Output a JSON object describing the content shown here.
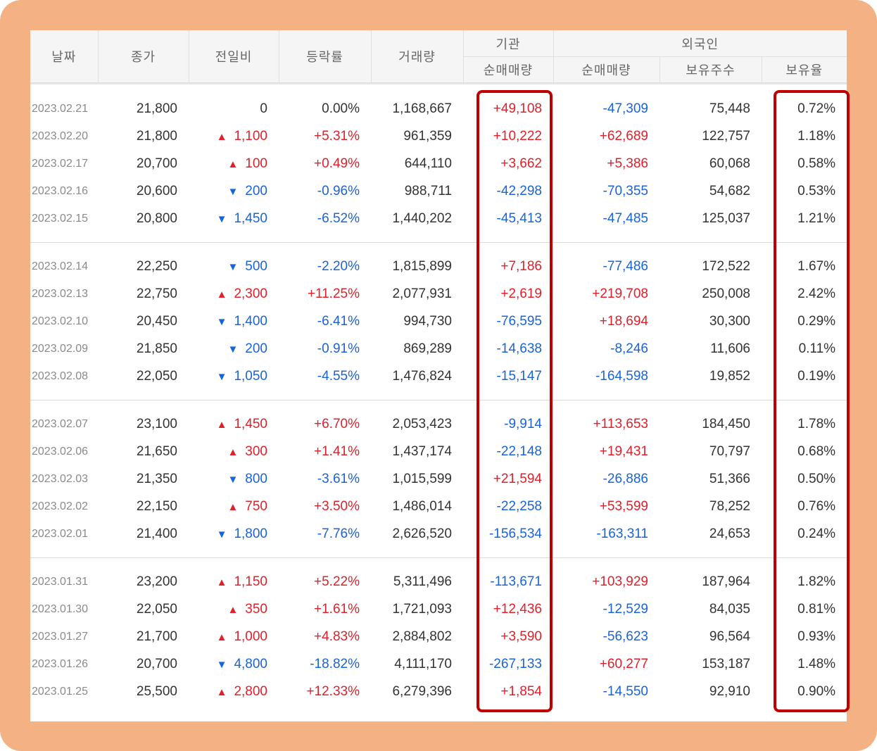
{
  "header": {
    "date": "날짜",
    "close": "종가",
    "diff": "전일비",
    "rate": "등락률",
    "volume": "거래량",
    "institution": "기관",
    "foreign": "외국인",
    "inst_net": "순매매량",
    "foreign_net": "순매매량",
    "foreign_holdings": "보유주수",
    "foreign_ratio": "보유율"
  },
  "colors": {
    "up": "#e0202a",
    "down": "#1a63d8",
    "highlight_border": "#c00000",
    "frame_background": "#f3b184"
  },
  "groups": [
    [
      {
        "date": "2023.02.21",
        "close": "21,800",
        "diff_dir": "none",
        "diff": "0",
        "rate": "0.00%",
        "volume": "1,168,667",
        "inst_net": "+49,108",
        "foreign_net": "-47,309",
        "holdings": "75,448",
        "ratio": "0.72%"
      },
      {
        "date": "2023.02.20",
        "close": "21,800",
        "diff_dir": "up",
        "diff": "1,100",
        "rate": "+5.31%",
        "volume": "961,359",
        "inst_net": "+10,222",
        "foreign_net": "+62,689",
        "holdings": "122,757",
        "ratio": "1.18%"
      },
      {
        "date": "2023.02.17",
        "close": "20,700",
        "diff_dir": "up",
        "diff": "100",
        "rate": "+0.49%",
        "volume": "644,110",
        "inst_net": "+3,662",
        "foreign_net": "+5,386",
        "holdings": "60,068",
        "ratio": "0.58%"
      },
      {
        "date": "2023.02.16",
        "close": "20,600",
        "diff_dir": "down",
        "diff": "200",
        "rate": "-0.96%",
        "volume": "988,711",
        "inst_net": "-42,298",
        "foreign_net": "-70,355",
        "holdings": "54,682",
        "ratio": "0.53%"
      },
      {
        "date": "2023.02.15",
        "close": "20,800",
        "diff_dir": "down",
        "diff": "1,450",
        "rate": "-6.52%",
        "volume": "1,440,202",
        "inst_net": "-45,413",
        "foreign_net": "-47,485",
        "holdings": "125,037",
        "ratio": "1.21%"
      }
    ],
    [
      {
        "date": "2023.02.14",
        "close": "22,250",
        "diff_dir": "down",
        "diff": "500",
        "rate": "-2.20%",
        "volume": "1,815,899",
        "inst_net": "+7,186",
        "foreign_net": "-77,486",
        "holdings": "172,522",
        "ratio": "1.67%"
      },
      {
        "date": "2023.02.13",
        "close": "22,750",
        "diff_dir": "up",
        "diff": "2,300",
        "rate": "+11.25%",
        "volume": "2,077,931",
        "inst_net": "+2,619",
        "foreign_net": "+219,708",
        "holdings": "250,008",
        "ratio": "2.42%"
      },
      {
        "date": "2023.02.10",
        "close": "20,450",
        "diff_dir": "down",
        "diff": "1,400",
        "rate": "-6.41%",
        "volume": "994,730",
        "inst_net": "-76,595",
        "foreign_net": "+18,694",
        "holdings": "30,300",
        "ratio": "0.29%"
      },
      {
        "date": "2023.02.09",
        "close": "21,850",
        "diff_dir": "down",
        "diff": "200",
        "rate": "-0.91%",
        "volume": "869,289",
        "inst_net": "-14,638",
        "foreign_net": "-8,246",
        "holdings": "11,606",
        "ratio": "0.11%"
      },
      {
        "date": "2023.02.08",
        "close": "22,050",
        "diff_dir": "down",
        "diff": "1,050",
        "rate": "-4.55%",
        "volume": "1,476,824",
        "inst_net": "-15,147",
        "foreign_net": "-164,598",
        "holdings": "19,852",
        "ratio": "0.19%"
      }
    ],
    [
      {
        "date": "2023.02.07",
        "close": "23,100",
        "diff_dir": "up",
        "diff": "1,450",
        "rate": "+6.70%",
        "volume": "2,053,423",
        "inst_net": "-9,914",
        "foreign_net": "+113,653",
        "holdings": "184,450",
        "ratio": "1.78%"
      },
      {
        "date": "2023.02.06",
        "close": "21,650",
        "diff_dir": "up",
        "diff": "300",
        "rate": "+1.41%",
        "volume": "1,437,174",
        "inst_net": "-22,148",
        "foreign_net": "+19,431",
        "holdings": "70,797",
        "ratio": "0.68%"
      },
      {
        "date": "2023.02.03",
        "close": "21,350",
        "diff_dir": "down",
        "diff": "800",
        "rate": "-3.61%",
        "volume": "1,015,599",
        "inst_net": "+21,594",
        "foreign_net": "-26,886",
        "holdings": "51,366",
        "ratio": "0.50%"
      },
      {
        "date": "2023.02.02",
        "close": "22,150",
        "diff_dir": "up",
        "diff": "750",
        "rate": "+3.50%",
        "volume": "1,486,014",
        "inst_net": "-22,258",
        "foreign_net": "+53,599",
        "holdings": "78,252",
        "ratio": "0.76%"
      },
      {
        "date": "2023.02.01",
        "close": "21,400",
        "diff_dir": "down",
        "diff": "1,800",
        "rate": "-7.76%",
        "volume": "2,626,520",
        "inst_net": "-156,534",
        "foreign_net": "-163,311",
        "holdings": "24,653",
        "ratio": "0.24%"
      }
    ],
    [
      {
        "date": "2023.01.31",
        "close": "23,200",
        "diff_dir": "up",
        "diff": "1,150",
        "rate": "+5.22%",
        "volume": "5,311,496",
        "inst_net": "-113,671",
        "foreign_net": "+103,929",
        "holdings": "187,964",
        "ratio": "1.82%"
      },
      {
        "date": "2023.01.30",
        "close": "22,050",
        "diff_dir": "up",
        "diff": "350",
        "rate": "+1.61%",
        "volume": "1,721,093",
        "inst_net": "+12,436",
        "foreign_net": "-12,529",
        "holdings": "84,035",
        "ratio": "0.81%"
      },
      {
        "date": "2023.01.27",
        "close": "21,700",
        "diff_dir": "up",
        "diff": "1,000",
        "rate": "+4.83%",
        "volume": "2,884,802",
        "inst_net": "+3,590",
        "foreign_net": "-56,623",
        "holdings": "96,564",
        "ratio": "0.93%"
      },
      {
        "date": "2023.01.26",
        "close": "20,700",
        "diff_dir": "down",
        "diff": "4,800",
        "rate": "-18.82%",
        "volume": "4,111,170",
        "inst_net": "-267,133",
        "foreign_net": "+60,277",
        "holdings": "153,187",
        "ratio": "1.48%"
      },
      {
        "date": "2023.01.25",
        "close": "25,500",
        "diff_dir": "up",
        "diff": "2,800",
        "rate": "+12.33%",
        "volume": "6,279,396",
        "inst_net": "+1,854",
        "foreign_net": "-14,550",
        "holdings": "92,910",
        "ratio": "0.90%"
      }
    ]
  ]
}
